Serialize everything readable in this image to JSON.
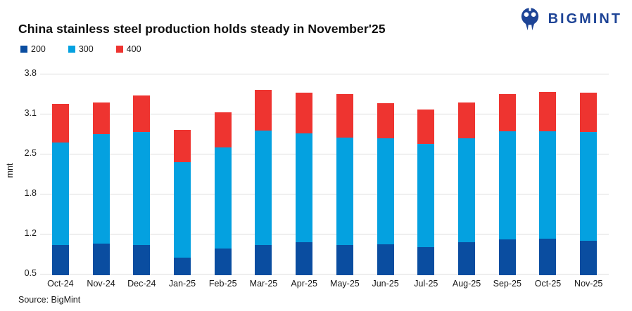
{
  "header": {
    "title": "China stainless steel production holds steady in November'25",
    "logo_text": "BIGMINT"
  },
  "source": "Source: BigMint",
  "colors": {
    "series_200": "#0a4da0",
    "series_300": "#04a1e0",
    "series_400": "#ee3430",
    "logo_blue": "#1e4496",
    "gridline": "#dcdcdc",
    "text": "#1a1a1a"
  },
  "chart_data": {
    "type": "bar",
    "stacked": true,
    "title": "China stainless steel production holds steady in November'25",
    "xlabel": "",
    "ylabel": "mnt",
    "ylim": [
      0.5,
      3.8
    ],
    "grid": true,
    "legend_position": "top-left",
    "yticks": [
      {
        "label": "3.8",
        "value": 3.8
      },
      {
        "label": "3.1",
        "value": 3.14
      },
      {
        "label": "2.5",
        "value": 2.48
      },
      {
        "label": "1.8",
        "value": 1.82
      },
      {
        "label": "1.2",
        "value": 1.16
      },
      {
        "label": "0.5",
        "value": 0.5
      }
    ],
    "categories": [
      "Oct-24",
      "Nov-24",
      "Dec-24",
      "Jan-25",
      "Feb-25",
      "Mar-25",
      "Apr-25",
      "May-25",
      "Jun-25",
      "Jul-25",
      "Aug-25",
      "Sep-25",
      "Oct-25",
      "Nov-25"
    ],
    "series": [
      {
        "name": "200",
        "color": "#0a4da0",
        "values": [
          0.97,
          1.0,
          0.98,
          0.77,
          0.92,
          0.97,
          1.02,
          0.97,
          0.99,
          0.94,
          1.02,
          1.07,
          1.08,
          1.04
        ]
      },
      {
        "name": "300",
        "color": "#04a1e0",
        "values": [
          1.69,
          1.8,
          1.86,
          1.57,
          1.66,
          1.89,
          1.8,
          1.78,
          1.75,
          1.7,
          1.72,
          1.78,
          1.77,
          1.8
        ]
      },
      {
        "name": "400",
        "color": "#ee3430",
        "values": [
          0.64,
          0.53,
          0.6,
          0.53,
          0.58,
          0.67,
          0.67,
          0.71,
          0.57,
          0.57,
          0.59,
          0.62,
          0.65,
          0.65
        ]
      }
    ],
    "totals": [
      3.3,
      3.33,
      3.44,
      2.87,
      3.16,
      3.53,
      3.49,
      3.46,
      3.31,
      3.21,
      3.33,
      3.47,
      3.5,
      3.49
    ]
  }
}
